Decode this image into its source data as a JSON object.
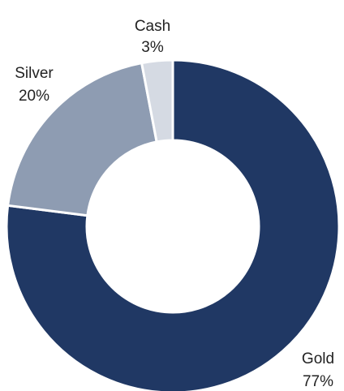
{
  "chart_data": {
    "type": "pie",
    "variant": "donut",
    "title": "",
    "slices": [
      {
        "name": "Gold",
        "value": 77,
        "label": "77%",
        "color": "#203864"
      },
      {
        "name": "Silver",
        "value": 20,
        "label": "20%",
        "color": "#8e9cb2"
      },
      {
        "name": "Cash",
        "value": 3,
        "label": "3%",
        "color": "#d5dae3"
      }
    ],
    "start_angle": "12 o'clock",
    "direction": "clockwise",
    "legend": "none"
  }
}
